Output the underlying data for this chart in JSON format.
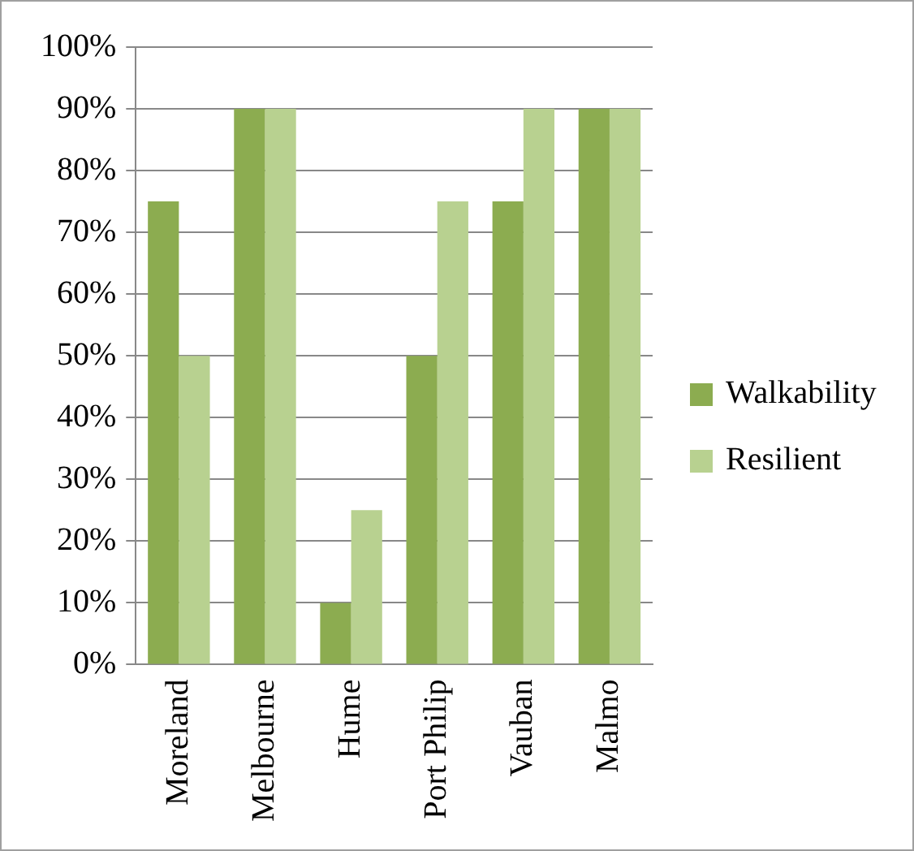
{
  "chart_data": {
    "type": "bar",
    "categories": [
      "Moreland",
      "Melbourne",
      "Hume",
      "Port Philip",
      "Vauban",
      "Malmo"
    ],
    "series": [
      {
        "name": "Walkability",
        "color": "#8cac50",
        "values": [
          75,
          90,
          10,
          50,
          75,
          90
        ]
      },
      {
        "name": "Resilient",
        "color": "#b8d190",
        "values": [
          50,
          90,
          25,
          75,
          90,
          90
        ]
      }
    ],
    "ylim": [
      0,
      100
    ],
    "yticks": [
      {
        "value": 0,
        "label": "0%"
      },
      {
        "value": 10,
        "label": "10%"
      },
      {
        "value": 20,
        "label": "20%"
      },
      {
        "value": 30,
        "label": "30%"
      },
      {
        "value": 40,
        "label": "40%"
      },
      {
        "value": 50,
        "label": "50%"
      },
      {
        "value": 60,
        "label": "60%"
      },
      {
        "value": 70,
        "label": "70%"
      },
      {
        "value": 80,
        "label": "80%"
      },
      {
        "value": 90,
        "label": "90%"
      },
      {
        "value": 100,
        "label": "100%"
      }
    ],
    "grid": "y",
    "legend": "right"
  }
}
